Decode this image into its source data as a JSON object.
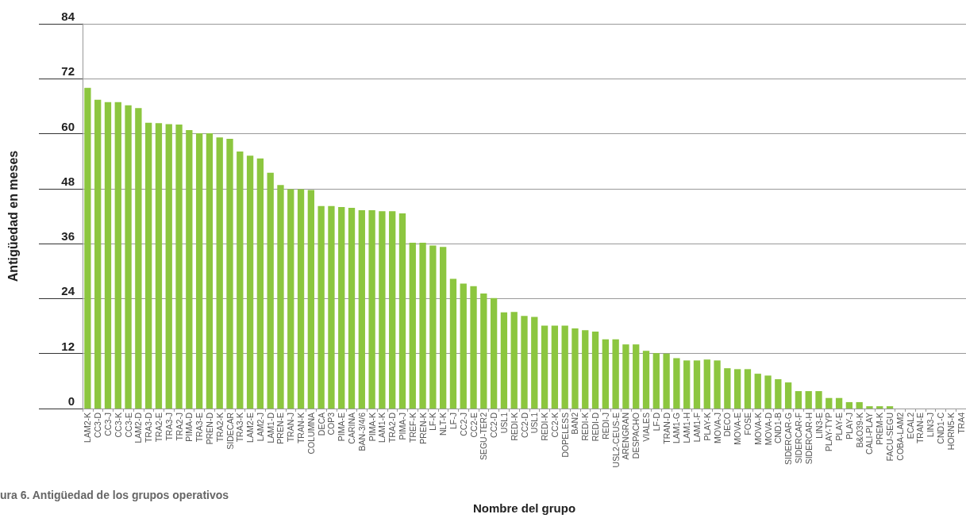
{
  "chart_data": {
    "type": "bar",
    "xlabel": "Nombre del grupo",
    "ylabel": "Antigüedad en meses",
    "annotations": [
      "ura 6. Antigüedad de los grupos operativos"
    ],
    "categories": [
      "LAM2-K",
      "CC3-D",
      "CC3-J",
      "CC3-K",
      "CC3-E",
      "LAM2-D",
      "TRA3-D",
      "TRA2-E",
      "TRA3-J",
      "TRA2-J",
      "PIMA-D",
      "TRA3-E",
      "PREN-D",
      "TRA2-K",
      "SIDECAR",
      "TRA3-K",
      "LAM2-E",
      "LAM2-J",
      "LAM1-D",
      "PREN-E",
      "TRAN-J",
      "TRAN-K",
      "COLUMNA",
      "DECA",
      "COP3",
      "PIMA-E",
      "CARINA",
      "BAN-3/4/6",
      "PIMA-K",
      "LAM1-K",
      "TRA2-D",
      "PIMA-J",
      "TREF-K",
      "PREN-K",
      "LF-K",
      "NLT-K",
      "LF-J",
      "CC2-J",
      "CC2-E",
      "SEGU-TER2",
      "CC2-D",
      "USL1",
      "REDI-K",
      "CC2-D",
      "USL1",
      "REDI-K",
      "CC2-K",
      "DOPELESS",
      "BAN2",
      "REDI-K",
      "REDI-D",
      "REDI-J",
      "USL2-CEUS-E",
      "ARENGRAN",
      "DESPACHO",
      "VIALES",
      "LF-D",
      "TRAN-D",
      "LAM1-G",
      "LAM1-H",
      "LAM1-F",
      "PLAY-K",
      "MOVA-J",
      "DECO",
      "MOVA-E",
      "FOSE",
      "MOVA-K",
      "MOVA-D",
      "CND1-B",
      "SIDERCAR-G",
      "SIDERCAR-F",
      "SIDERCAR-H",
      "LIN3-E",
      "PLAY-TYP",
      "PLAY-E",
      "PLAY-J",
      "B&O39-K",
      "CALI-PLAY",
      "PREM-K",
      "FACU-SEGU",
      "COBA-LAM2",
      "ECAL2",
      "TRAN-E",
      "LIN3-J",
      "CND1-C",
      "HORN5-K",
      "TRA4"
    ],
    "values": [
      70.0,
      67.4,
      66.9,
      66.9,
      66.2,
      65.6,
      62.4,
      62.3,
      62.1,
      62.0,
      60.8,
      60.1,
      60.1,
      59.2,
      58.9,
      56.1,
      55.2,
      54.6,
      51.5,
      48.8,
      47.9,
      47.9,
      47.7,
      44.2,
      44.2,
      44.0,
      43.8,
      43.3,
      43.3,
      43.1,
      43.1,
      42.6,
      36.2,
      36.2,
      35.6,
      35.3,
      28.3,
      27.3,
      26.7,
      25.1,
      24.1,
      21.0,
      21.1,
      20.2,
      20.0,
      18.1,
      18.1,
      18.1,
      17.5,
      17.1,
      16.8,
      15.1,
      15.1,
      14.0,
      14.0,
      12.6,
      12.1,
      12.0,
      11.0,
      10.5,
      10.5,
      10.7,
      10.5,
      8.8,
      8.6,
      8.6,
      7.6,
      7.2,
      6.4,
      5.7,
      3.8,
      3.8,
      3.8,
      2.3,
      2.3,
      1.4,
      1.4,
      0.5,
      0.5,
      0.5,
      0,
      0,
      0,
      0,
      0,
      0,
      0
    ],
    "color": "#8cc63f",
    "ylim": [
      0,
      84
    ],
    "yticks": [
      0,
      12,
      24,
      36,
      48,
      60,
      72,
      84
    ],
    "grid": "y"
  }
}
